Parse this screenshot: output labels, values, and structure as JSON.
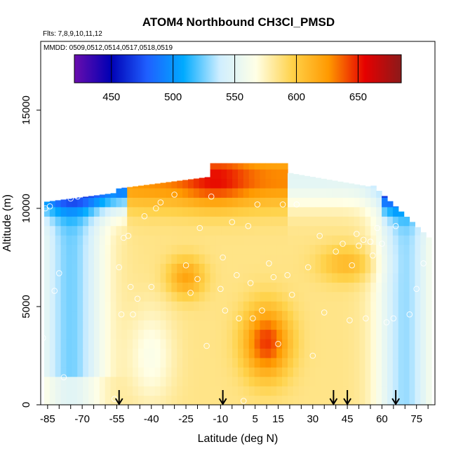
{
  "chart_data": {
    "type": "heatmap",
    "title": "ATOM4 Northbound CH3Cl_PMSD",
    "flights_label": "Flts: 7,8,9,10,11,12",
    "dates_label": "MMDD: 0509,0512,0514,0517,0518,0519",
    "xlabel": "Latitude (deg N)",
    "ylabel": "Altitude (m)",
    "xlim": [
      -88,
      83
    ],
    "ylim": [
      0,
      18500
    ],
    "x_ticks": [
      -85,
      -80,
      -75,
      -70,
      -65,
      -60,
      -55,
      -50,
      -45,
      -40,
      -35,
      -30,
      -25,
      -20,
      -15,
      -10,
      -5,
      0,
      5,
      10,
      15,
      20,
      25,
      30,
      35,
      40,
      45,
      50,
      55,
      60,
      65,
      70,
      75,
      80
    ],
    "x_tick_labels": [
      "-85",
      "-70",
      "-55",
      "-40",
      "-25",
      "-10",
      "5",
      "15",
      "30",
      "45",
      "60",
      "75"
    ],
    "x_tick_label_values": [
      -85,
      -70,
      -55,
      -40,
      -25,
      -10,
      5,
      15,
      30,
      45,
      60,
      75
    ],
    "y_ticks": [
      0,
      5000,
      10000,
      15000
    ],
    "y_tick_labels": [
      "0",
      "5000",
      "10000",
      "15000"
    ],
    "colorbar": {
      "range": [
        420,
        685
      ],
      "ticks": [
        450,
        500,
        550,
        600,
        650
      ],
      "tick_labels": [
        "450",
        "500",
        "550",
        "600",
        "650"
      ],
      "colors": [
        "#6a0dad",
        "#0000b4",
        "#1f5fff",
        "#00aaff",
        "#cfeeff",
        "#ffffe6",
        "#ffd24a",
        "#ff9900",
        "#e60000",
        "#8b1a1a"
      ]
    },
    "arrow_latitudes": [
      -54,
      -9,
      39,
      45,
      66
    ],
    "field_stats": {
      "min": 440,
      "max": 665,
      "typical": 585
    },
    "sample_points": [
      [
        -87,
        3400
      ],
      [
        -86,
        10000
      ],
      [
        -84,
        10100
      ],
      [
        -82,
        5800
      ],
      [
        -80,
        6700
      ],
      [
        -78,
        1400
      ],
      [
        -75,
        10500
      ],
      [
        -72,
        10600
      ],
      [
        -65,
        11300
      ],
      [
        -62,
        11400
      ],
      [
        -58,
        11800
      ],
      [
        -56,
        300
      ],
      [
        -54,
        7000
      ],
      [
        -53,
        4600
      ],
      [
        -52,
        8500
      ],
      [
        -50,
        8600
      ],
      [
        -49,
        6000
      ],
      [
        -48,
        4600
      ],
      [
        -46,
        5400
      ],
      [
        -43,
        9600
      ],
      [
        -40,
        6000
      ],
      [
        -38,
        10000
      ],
      [
        -36,
        10300
      ],
      [
        -30,
        10700
      ],
      [
        -25,
        7100
      ],
      [
        -23,
        5700
      ],
      [
        -20,
        6400
      ],
      [
        -19,
        9000
      ],
      [
        -16,
        3000
      ],
      [
        -14,
        10600
      ],
      [
        -10,
        5900
      ],
      [
        -9,
        7500
      ],
      [
        -8,
        4800
      ],
      [
        -5,
        9300
      ],
      [
        -3,
        6600
      ],
      [
        -2,
        4400
      ],
      [
        0,
        200
      ],
      [
        2,
        9100
      ],
      [
        3,
        6200
      ],
      [
        4,
        4400
      ],
      [
        6,
        10200
      ],
      [
        8,
        4800
      ],
      [
        11,
        7200
      ],
      [
        13,
        6500
      ],
      [
        15,
        3100
      ],
      [
        17,
        10200
      ],
      [
        19,
        6600
      ],
      [
        21,
        5600
      ],
      [
        23,
        10200
      ],
      [
        28,
        7000
      ],
      [
        30,
        2500
      ],
      [
        33,
        8600
      ],
      [
        35,
        4700
      ],
      [
        40,
        7800
      ],
      [
        43,
        8200
      ],
      [
        46,
        4300
      ],
      [
        47,
        7100
      ],
      [
        49,
        8700
      ],
      [
        50,
        8100
      ],
      [
        52,
        8400
      ],
      [
        53,
        4400
      ],
      [
        55,
        8300
      ],
      [
        56,
        7600
      ],
      [
        58,
        9000
      ],
      [
        60,
        8200
      ],
      [
        62,
        4200
      ],
      [
        65,
        4400
      ],
      [
        66,
        9100
      ],
      [
        68,
        10900
      ],
      [
        70,
        10400
      ],
      [
        72,
        4600
      ],
      [
        74,
        10800
      ],
      [
        75,
        5900
      ],
      [
        78,
        7200
      ],
      [
        80,
        9400
      ]
    ]
  }
}
